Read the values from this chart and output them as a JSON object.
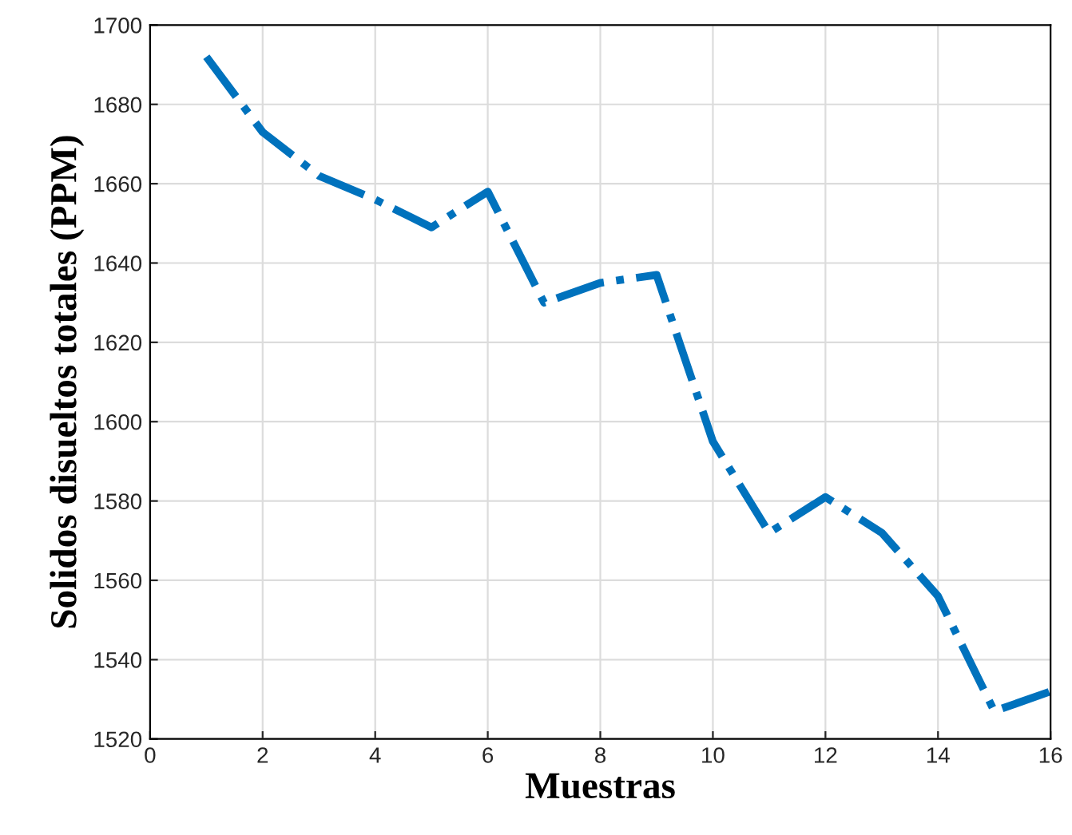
{
  "chart_data": {
    "type": "line",
    "xlabel": "Muestras",
    "ylabel": "Solidos disueltos totales (PPM)",
    "x": [
      1,
      2,
      3,
      4,
      5,
      6,
      7,
      8,
      9,
      10,
      11,
      12,
      13,
      14,
      15,
      16
    ],
    "series": [
      {
        "color": "#0072bd",
        "values": [
          1692,
          1673,
          1662,
          1656,
          1649,
          1658,
          1630,
          1635,
          1637,
          1595,
          1572,
          1581,
          1572,
          1556,
          1527,
          1532
        ]
      }
    ],
    "xlim": [
      0,
      16
    ],
    "xticks": [
      0,
      2,
      4,
      6,
      8,
      10,
      12,
      14,
      16
    ],
    "ylim": [
      1520,
      1700
    ],
    "yticks": [
      1520,
      1540,
      1560,
      1580,
      1600,
      1620,
      1640,
      1660,
      1680,
      1700
    ],
    "grid": true,
    "line_style": "dashdot",
    "marker": "none"
  }
}
